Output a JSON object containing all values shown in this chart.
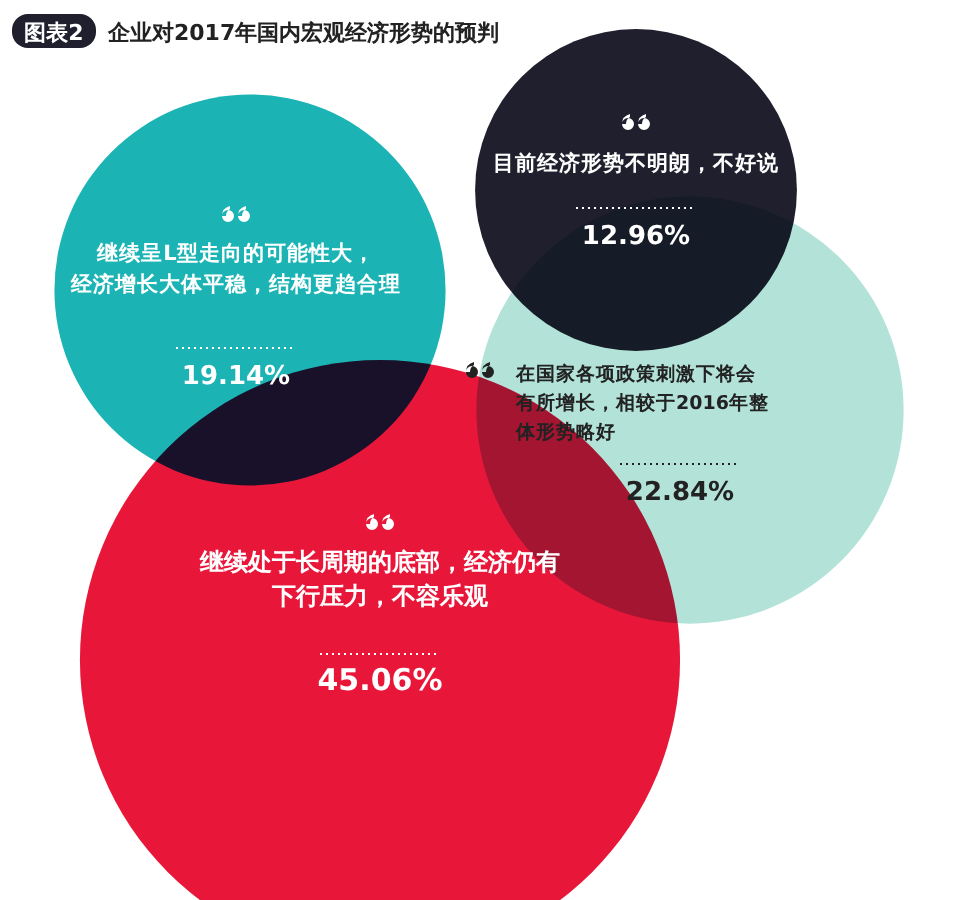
{
  "chart_data": {
    "type": "other",
    "title": "企业对2017年国内宏观经济形势的预判",
    "annotations": [
      "图表2"
    ],
    "categories": [
      "继续呈L型走向的可能性大，经济增长大体平稳，结构更趋合理",
      "目前经济形势不明朗，不好说",
      "在国家各项政策刺激下将会有所增长，相较于2016年整体形势略好",
      "继续处于长周期的底部，经济仍有下行压力，不容乐观"
    ],
    "values": [
      19.14,
      12.96,
      22.84,
      45.06
    ],
    "value_labels": [
      "19.14%",
      "12.96%",
      "22.84%",
      "45.06%"
    ],
    "colors": [
      "#1bb3b4",
      "#1f1f2e",
      "#b3e3d8",
      "#e8173a"
    ]
  }
}
